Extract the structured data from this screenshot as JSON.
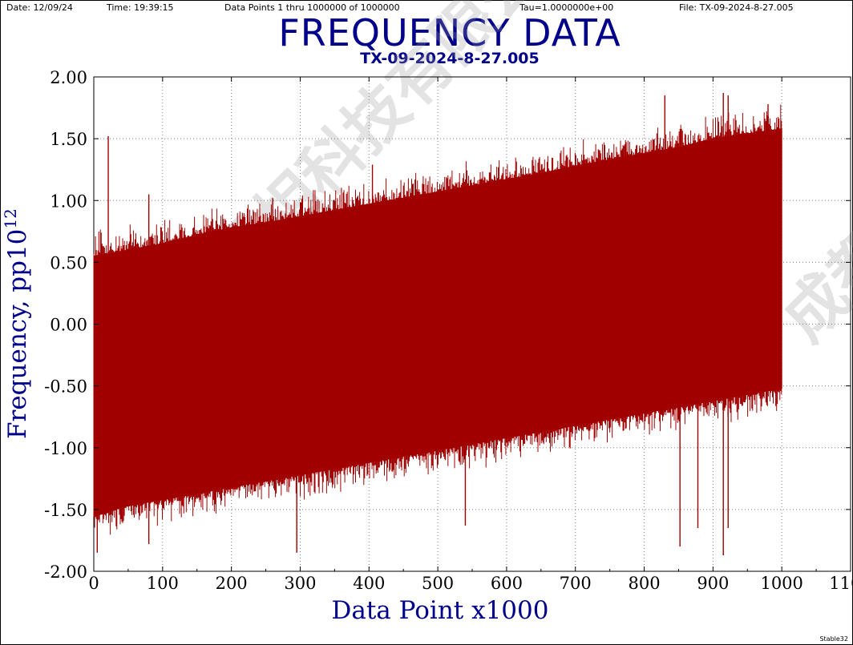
{
  "header": {
    "date": "Date: 12/09/24",
    "time": "Time: 19:39:15",
    "data_points": "Data Points 1 thru 1000000 of 1000000",
    "tau": "Tau=1.0000000e+00",
    "file": "File: TX-09-2024-8-27.005"
  },
  "footer": {
    "tag": "Stable32"
  },
  "watermark": {
    "text": "成都同相科技有限公司"
  },
  "colors": {
    "series": "#a00000",
    "title": "#00008b",
    "grid": "#808080"
  },
  "chart_data": {
    "type": "area",
    "title": "FREQUENCY DATA",
    "subtitle": "TX-09-2024-8-27.005",
    "xlabel": "Data Point x1000",
    "ylabel_main": "Frequency, pp10",
    "ylabel_exp": "12",
    "xlim": [
      0,
      1100
    ],
    "ylim": [
      -2.0,
      2.0
    ],
    "grid": true,
    "x_ticks": [
      "0",
      "100",
      "200",
      "300",
      "400",
      "500",
      "600",
      "700",
      "800",
      "900",
      "1000",
      "1100"
    ],
    "y_ticks": [
      "-2.00",
      "-1.50",
      "-1.00",
      "-0.50",
      "0.00",
      "0.50",
      "1.00",
      "1.50",
      "2.00"
    ],
    "x": [
      0,
      50,
      100,
      150,
      200,
      250,
      300,
      350,
      400,
      450,
      500,
      550,
      600,
      650,
      700,
      750,
      800,
      850,
      900,
      950,
      1000
    ],
    "series": [
      {
        "upper": [
          0.55,
          0.6,
          0.65,
          0.72,
          0.78,
          0.82,
          0.87,
          0.92,
          0.97,
          1.02,
          1.07,
          1.12,
          1.17,
          1.22,
          1.28,
          1.33,
          1.38,
          1.43,
          1.5,
          1.54,
          1.58
        ],
        "lower": [
          -1.55,
          -1.47,
          -1.42,
          -1.37,
          -1.32,
          -1.27,
          -1.22,
          -1.17,
          -1.12,
          -1.07,
          -1.02,
          -0.97,
          -0.92,
          -0.87,
          -0.82,
          -0.77,
          -0.72,
          -0.67,
          -0.62,
          -0.57,
          -0.52
        ],
        "spikes": [
          {
            "x": 21,
            "y": 1.52
          },
          {
            "x": 80,
            "y": 1.05
          },
          {
            "x": 260,
            "y": 1.02
          },
          {
            "x": 405,
            "y": 1.29
          },
          {
            "x": 830,
            "y": 1.85
          },
          {
            "x": 915,
            "y": 1.87
          },
          {
            "x": 922,
            "y": 1.85
          },
          {
            "x": 980,
            "y": 1.78
          },
          {
            "x": 5,
            "y": -1.85
          },
          {
            "x": 80,
            "y": -1.78
          },
          {
            "x": 295,
            "y": -1.85
          },
          {
            "x": 540,
            "y": -1.63
          },
          {
            "x": 852,
            "y": -1.8
          },
          {
            "x": 878,
            "y": -1.65
          },
          {
            "x": 915,
            "y": -1.87
          },
          {
            "x": 922,
            "y": -1.65
          }
        ]
      }
    ]
  }
}
